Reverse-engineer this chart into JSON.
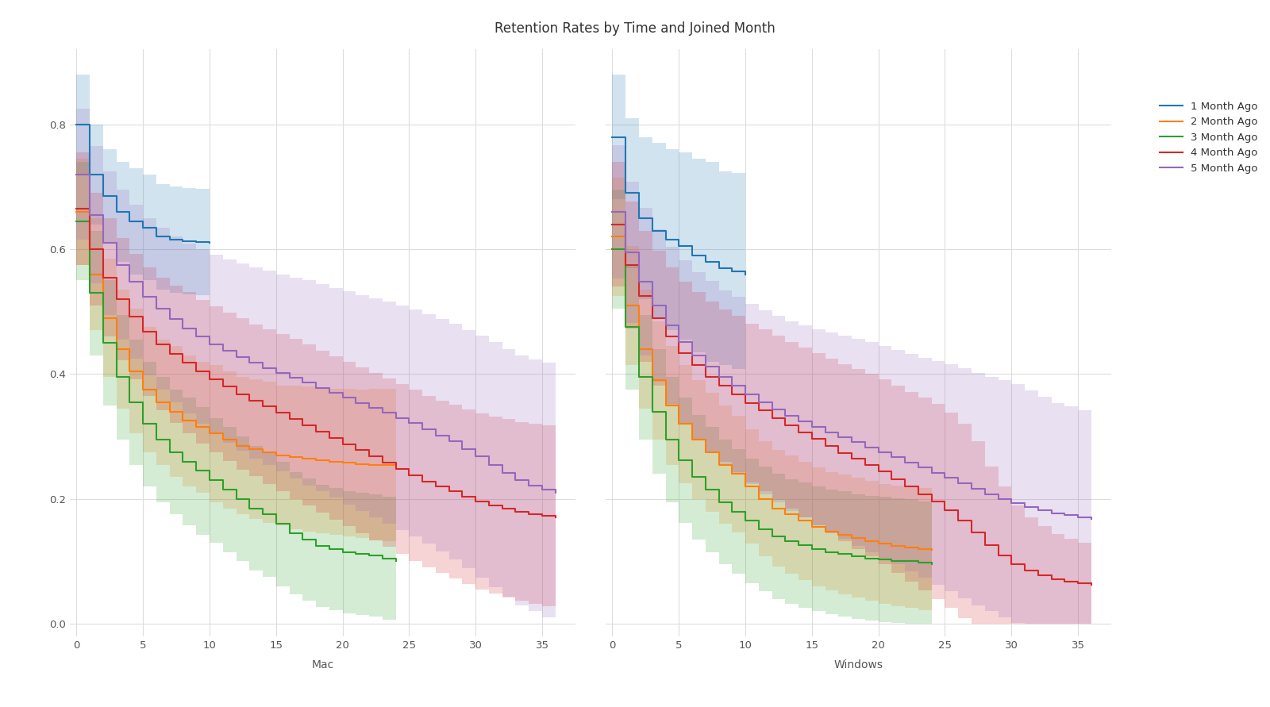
{
  "title": "Retention Rates by Time and Joined Month",
  "title_fontsize": 12,
  "mac_label": "Mac",
  "windows_label": "Windows",
  "series": [
    {
      "label": "1 Month Ago",
      "color": "#1f77b4",
      "mac": {
        "x": [
          0,
          1,
          2,
          3,
          4,
          5,
          6,
          7,
          8,
          9,
          10
        ],
        "y": [
          0.8,
          0.72,
          0.685,
          0.66,
          0.645,
          0.635,
          0.62,
          0.615,
          0.613,
          0.612,
          0.61
        ],
        "y_lo": [
          0.72,
          0.64,
          0.61,
          0.58,
          0.56,
          0.55,
          0.535,
          0.53,
          0.528,
          0.527,
          0.525
        ],
        "y_hi": [
          0.88,
          0.8,
          0.76,
          0.74,
          0.73,
          0.72,
          0.705,
          0.7,
          0.698,
          0.697,
          0.695
        ]
      },
      "windows": {
        "x": [
          0,
          1,
          2,
          3,
          4,
          5,
          6,
          7,
          8,
          9,
          10
        ],
        "y": [
          0.78,
          0.69,
          0.65,
          0.63,
          0.615,
          0.605,
          0.59,
          0.58,
          0.57,
          0.565,
          0.56
        ],
        "y_lo": [
          0.68,
          0.57,
          0.52,
          0.49,
          0.47,
          0.455,
          0.435,
          0.42,
          0.415,
          0.408,
          0.405
        ],
        "y_hi": [
          0.88,
          0.81,
          0.78,
          0.77,
          0.76,
          0.755,
          0.745,
          0.74,
          0.725,
          0.722,
          0.715
        ]
      }
    },
    {
      "label": "2 Month Ago",
      "color": "#ff7f0e",
      "mac": {
        "x": [
          0,
          1,
          2,
          3,
          4,
          5,
          6,
          7,
          8,
          9,
          10,
          11,
          12,
          13,
          14,
          15,
          16,
          17,
          18,
          19,
          20,
          21,
          22,
          23,
          24
        ],
        "y": [
          0.66,
          0.56,
          0.49,
          0.44,
          0.405,
          0.375,
          0.355,
          0.34,
          0.325,
          0.315,
          0.305,
          0.295,
          0.285,
          0.28,
          0.275,
          0.27,
          0.267,
          0.264,
          0.262,
          0.26,
          0.258,
          0.256,
          0.255,
          0.254,
          0.253
        ],
        "y_lo": [
          0.575,
          0.47,
          0.395,
          0.345,
          0.305,
          0.275,
          0.255,
          0.235,
          0.22,
          0.21,
          0.195,
          0.185,
          0.175,
          0.168,
          0.162,
          0.158,
          0.152,
          0.148,
          0.145,
          0.143,
          0.14,
          0.137,
          0.134,
          0.132,
          0.13
        ],
        "y_hi": [
          0.745,
          0.65,
          0.585,
          0.535,
          0.505,
          0.475,
          0.455,
          0.445,
          0.43,
          0.42,
          0.415,
          0.405,
          0.395,
          0.392,
          0.388,
          0.382,
          0.382,
          0.38,
          0.379,
          0.377,
          0.376,
          0.375,
          0.376,
          0.376,
          0.376
        ]
      },
      "windows": {
        "x": [
          0,
          1,
          2,
          3,
          4,
          5,
          6,
          7,
          8,
          9,
          10,
          11,
          12,
          13,
          14,
          15,
          16,
          17,
          18,
          19,
          20,
          21,
          22,
          23,
          24
        ],
        "y": [
          0.62,
          0.51,
          0.44,
          0.39,
          0.35,
          0.32,
          0.295,
          0.275,
          0.255,
          0.24,
          0.22,
          0.2,
          0.185,
          0.175,
          0.165,
          0.155,
          0.148,
          0.143,
          0.138,
          0.133,
          0.128,
          0.125,
          0.122,
          0.12,
          0.118
        ],
        "y_lo": [
          0.525,
          0.415,
          0.345,
          0.295,
          0.255,
          0.225,
          0.2,
          0.18,
          0.16,
          0.147,
          0.128,
          0.108,
          0.092,
          0.08,
          0.07,
          0.06,
          0.053,
          0.047,
          0.042,
          0.037,
          0.032,
          0.028,
          0.025,
          0.022,
          0.019
        ],
        "y_hi": [
          0.715,
          0.605,
          0.535,
          0.485,
          0.445,
          0.415,
          0.39,
          0.37,
          0.35,
          0.333,
          0.312,
          0.292,
          0.278,
          0.27,
          0.26,
          0.25,
          0.243,
          0.239,
          0.234,
          0.229,
          0.224,
          0.222,
          0.219,
          0.218,
          0.217
        ]
      }
    },
    {
      "label": "3 Month Ago",
      "color": "#2ca02c",
      "mac": {
        "x": [
          0,
          1,
          2,
          3,
          4,
          5,
          6,
          7,
          8,
          9,
          10,
          11,
          12,
          13,
          14,
          15,
          16,
          17,
          18,
          19,
          20,
          21,
          22,
          23,
          24
        ],
        "y": [
          0.645,
          0.53,
          0.45,
          0.395,
          0.355,
          0.32,
          0.295,
          0.275,
          0.26,
          0.245,
          0.23,
          0.215,
          0.2,
          0.185,
          0.175,
          0.16,
          0.145,
          0.135,
          0.125,
          0.12,
          0.115,
          0.112,
          0.11,
          0.105,
          0.1
        ],
        "y_lo": [
          0.55,
          0.43,
          0.35,
          0.295,
          0.255,
          0.22,
          0.195,
          0.175,
          0.158,
          0.143,
          0.13,
          0.115,
          0.1,
          0.085,
          0.075,
          0.06,
          0.047,
          0.037,
          0.027,
          0.022,
          0.017,
          0.014,
          0.012,
          0.007,
          0.003
        ],
        "y_hi": [
          0.74,
          0.63,
          0.55,
          0.495,
          0.455,
          0.42,
          0.395,
          0.375,
          0.362,
          0.347,
          0.33,
          0.315,
          0.3,
          0.285,
          0.275,
          0.26,
          0.243,
          0.233,
          0.223,
          0.218,
          0.213,
          0.21,
          0.208,
          0.203,
          0.197
        ]
      },
      "windows": {
        "x": [
          0,
          1,
          2,
          3,
          4,
          5,
          6,
          7,
          8,
          9,
          10,
          11,
          12,
          13,
          14,
          15,
          16,
          17,
          18,
          19,
          20,
          21,
          22,
          23,
          24
        ],
        "y": [
          0.6,
          0.475,
          0.395,
          0.34,
          0.295,
          0.262,
          0.235,
          0.215,
          0.195,
          0.18,
          0.165,
          0.152,
          0.14,
          0.132,
          0.126,
          0.12,
          0.115,
          0.112,
          0.108,
          0.105,
          0.103,
          0.101,
          0.1,
          0.098,
          0.095
        ],
        "y_lo": [
          0.505,
          0.375,
          0.295,
          0.24,
          0.195,
          0.162,
          0.135,
          0.115,
          0.095,
          0.08,
          0.065,
          0.052,
          0.04,
          0.032,
          0.026,
          0.02,
          0.015,
          0.012,
          0.008,
          0.005,
          0.003,
          0.001,
          0.0,
          0.0,
          0.0
        ],
        "y_hi": [
          0.695,
          0.575,
          0.495,
          0.44,
          0.395,
          0.362,
          0.335,
          0.315,
          0.295,
          0.28,
          0.265,
          0.252,
          0.24,
          0.232,
          0.226,
          0.22,
          0.215,
          0.212,
          0.208,
          0.205,
          0.203,
          0.201,
          0.2,
          0.196,
          0.19
        ]
      }
    },
    {
      "label": "4 Month Ago",
      "color": "#d62728",
      "mac": {
        "x": [
          0,
          1,
          2,
          3,
          4,
          5,
          6,
          7,
          8,
          9,
          10,
          11,
          12,
          13,
          14,
          15,
          16,
          17,
          18,
          19,
          20,
          21,
          22,
          23,
          24,
          25,
          26,
          27,
          28,
          29,
          30,
          31,
          32,
          33,
          34,
          35,
          36
        ],
        "y": [
          0.665,
          0.6,
          0.555,
          0.52,
          0.492,
          0.468,
          0.448,
          0.432,
          0.418,
          0.404,
          0.392,
          0.38,
          0.368,
          0.358,
          0.348,
          0.338,
          0.328,
          0.318,
          0.308,
          0.298,
          0.288,
          0.278,
          0.268,
          0.258,
          0.248,
          0.238,
          0.228,
          0.22,
          0.212,
          0.204,
          0.196,
          0.19,
          0.185,
          0.18,
          0.176,
          0.173,
          0.17
        ],
        "y_lo": [
          0.575,
          0.51,
          0.46,
          0.422,
          0.392,
          0.365,
          0.342,
          0.322,
          0.305,
          0.289,
          0.275,
          0.261,
          0.247,
          0.236,
          0.224,
          0.212,
          0.2,
          0.189,
          0.178,
          0.167,
          0.156,
          0.145,
          0.134,
          0.123,
          0.112,
          0.101,
          0.091,
          0.082,
          0.073,
          0.064,
          0.055,
          0.048,
          0.042,
          0.037,
          0.032,
          0.028,
          0.025
        ],
        "y_hi": [
          0.755,
          0.69,
          0.65,
          0.618,
          0.592,
          0.571,
          0.554,
          0.542,
          0.531,
          0.519,
          0.509,
          0.499,
          0.489,
          0.48,
          0.472,
          0.464,
          0.456,
          0.447,
          0.438,
          0.429,
          0.42,
          0.411,
          0.402,
          0.393,
          0.384,
          0.375,
          0.365,
          0.358,
          0.351,
          0.344,
          0.337,
          0.332,
          0.328,
          0.323,
          0.32,
          0.318,
          0.315
        ]
      },
      "windows": {
        "x": [
          0,
          1,
          2,
          3,
          4,
          5,
          6,
          7,
          8,
          9,
          10,
          11,
          12,
          13,
          14,
          15,
          16,
          17,
          18,
          19,
          20,
          21,
          22,
          23,
          24,
          25,
          26,
          27,
          28,
          29,
          30,
          31,
          32,
          33,
          34,
          35,
          36
        ],
        "y": [
          0.64,
          0.575,
          0.525,
          0.49,
          0.46,
          0.434,
          0.414,
          0.396,
          0.382,
          0.368,
          0.354,
          0.342,
          0.33,
          0.318,
          0.307,
          0.296,
          0.285,
          0.274,
          0.264,
          0.254,
          0.244,
          0.232,
          0.22,
          0.208,
          0.196,
          0.182,
          0.165,
          0.146,
          0.126,
          0.11,
          0.095,
          0.085,
          0.078,
          0.072,
          0.068,
          0.065,
          0.063
        ],
        "y_lo": [
          0.54,
          0.473,
          0.42,
          0.382,
          0.349,
          0.32,
          0.297,
          0.276,
          0.26,
          0.243,
          0.227,
          0.212,
          0.198,
          0.184,
          0.171,
          0.158,
          0.145,
          0.132,
          0.12,
          0.108,
          0.096,
          0.082,
          0.068,
          0.054,
          0.04,
          0.026,
          0.009,
          0.0,
          0.0,
          0.0,
          0.0,
          0.0,
          0.0,
          0.0,
          0.0,
          0.0,
          0.0
        ],
        "y_hi": [
          0.74,
          0.677,
          0.63,
          0.598,
          0.571,
          0.548,
          0.531,
          0.516,
          0.504,
          0.493,
          0.481,
          0.472,
          0.462,
          0.452,
          0.443,
          0.434,
          0.425,
          0.416,
          0.408,
          0.4,
          0.392,
          0.382,
          0.372,
          0.362,
          0.352,
          0.338,
          0.321,
          0.292,
          0.252,
          0.22,
          0.19,
          0.17,
          0.156,
          0.144,
          0.136,
          0.13,
          0.126
        ]
      }
    },
    {
      "label": "5 Month Ago",
      "color": "#9467bd",
      "mac": {
        "x": [
          0,
          1,
          2,
          3,
          4,
          5,
          6,
          7,
          8,
          9,
          10,
          11,
          12,
          13,
          14,
          15,
          16,
          17,
          18,
          19,
          20,
          21,
          22,
          23,
          24,
          25,
          26,
          27,
          28,
          29,
          30,
          31,
          32,
          33,
          34,
          35,
          36
        ],
        "y": [
          0.72,
          0.655,
          0.61,
          0.575,
          0.548,
          0.524,
          0.505,
          0.488,
          0.473,
          0.46,
          0.448,
          0.437,
          0.427,
          0.418,
          0.41,
          0.402,
          0.394,
          0.386,
          0.378,
          0.37,
          0.362,
          0.354,
          0.346,
          0.338,
          0.33,
          0.322,
          0.312,
          0.302,
          0.292,
          0.28,
          0.268,
          0.255,
          0.242,
          0.23,
          0.222,
          0.215,
          0.21
        ],
        "y_lo": [
          0.615,
          0.545,
          0.495,
          0.455,
          0.425,
          0.398,
          0.375,
          0.355,
          0.337,
          0.32,
          0.305,
          0.29,
          0.277,
          0.265,
          0.254,
          0.244,
          0.233,
          0.222,
          0.212,
          0.202,
          0.191,
          0.181,
          0.171,
          0.16,
          0.15,
          0.14,
          0.128,
          0.116,
          0.103,
          0.089,
          0.074,
          0.059,
          0.044,
          0.03,
          0.02,
          0.011,
          0.004
        ],
        "y_hi": [
          0.825,
          0.765,
          0.725,
          0.695,
          0.671,
          0.65,
          0.635,
          0.621,
          0.609,
          0.6,
          0.591,
          0.584,
          0.577,
          0.571,
          0.566,
          0.56,
          0.555,
          0.55,
          0.544,
          0.538,
          0.533,
          0.527,
          0.521,
          0.516,
          0.51,
          0.504,
          0.496,
          0.488,
          0.481,
          0.471,
          0.462,
          0.451,
          0.44,
          0.43,
          0.424,
          0.419,
          0.416
        ]
      },
      "windows": {
        "x": [
          0,
          1,
          2,
          3,
          4,
          5,
          6,
          7,
          8,
          9,
          10,
          11,
          12,
          13,
          14,
          15,
          16,
          17,
          18,
          19,
          20,
          21,
          22,
          23,
          24,
          25,
          26,
          27,
          28,
          29,
          30,
          31,
          32,
          33,
          34,
          35,
          36
        ],
        "y": [
          0.66,
          0.595,
          0.548,
          0.51,
          0.478,
          0.452,
          0.43,
          0.412,
          0.395,
          0.382,
          0.368,
          0.355,
          0.344,
          0.333,
          0.324,
          0.315,
          0.307,
          0.299,
          0.291,
          0.283,
          0.275,
          0.267,
          0.258,
          0.25,
          0.242,
          0.234,
          0.225,
          0.216,
          0.208,
          0.2,
          0.193,
          0.187,
          0.182,
          0.177,
          0.174,
          0.171,
          0.168
        ],
        "y_lo": [
          0.553,
          0.482,
          0.43,
          0.388,
          0.352,
          0.322,
          0.297,
          0.275,
          0.256,
          0.24,
          0.224,
          0.208,
          0.195,
          0.181,
          0.17,
          0.158,
          0.147,
          0.136,
          0.125,
          0.115,
          0.105,
          0.095,
          0.084,
          0.074,
          0.063,
          0.052,
          0.041,
          0.03,
          0.02,
          0.01,
          0.002,
          0.0,
          0.0,
          0.0,
          0.0,
          0.0,
          0.0
        ],
        "y_hi": [
          0.767,
          0.708,
          0.666,
          0.632,
          0.604,
          0.582,
          0.563,
          0.549,
          0.534,
          0.524,
          0.512,
          0.502,
          0.493,
          0.485,
          0.478,
          0.472,
          0.467,
          0.462,
          0.457,
          0.451,
          0.445,
          0.439,
          0.432,
          0.426,
          0.421,
          0.416,
          0.409,
          0.402,
          0.396,
          0.39,
          0.384,
          0.374,
          0.364,
          0.354,
          0.348,
          0.342,
          0.336
        ]
      }
    }
  ],
  "ylim": [
    -0.02,
    0.92
  ],
  "xlim": [
    -0.5,
    37.5
  ],
  "yticks": [
    0,
    0.2,
    0.4,
    0.6,
    0.8
  ],
  "xticks": [
    0,
    5,
    10,
    15,
    20,
    25,
    30,
    35
  ],
  "background_color": "#ffffff",
  "grid_color": "#dddddd",
  "alpha_fill": 0.2
}
